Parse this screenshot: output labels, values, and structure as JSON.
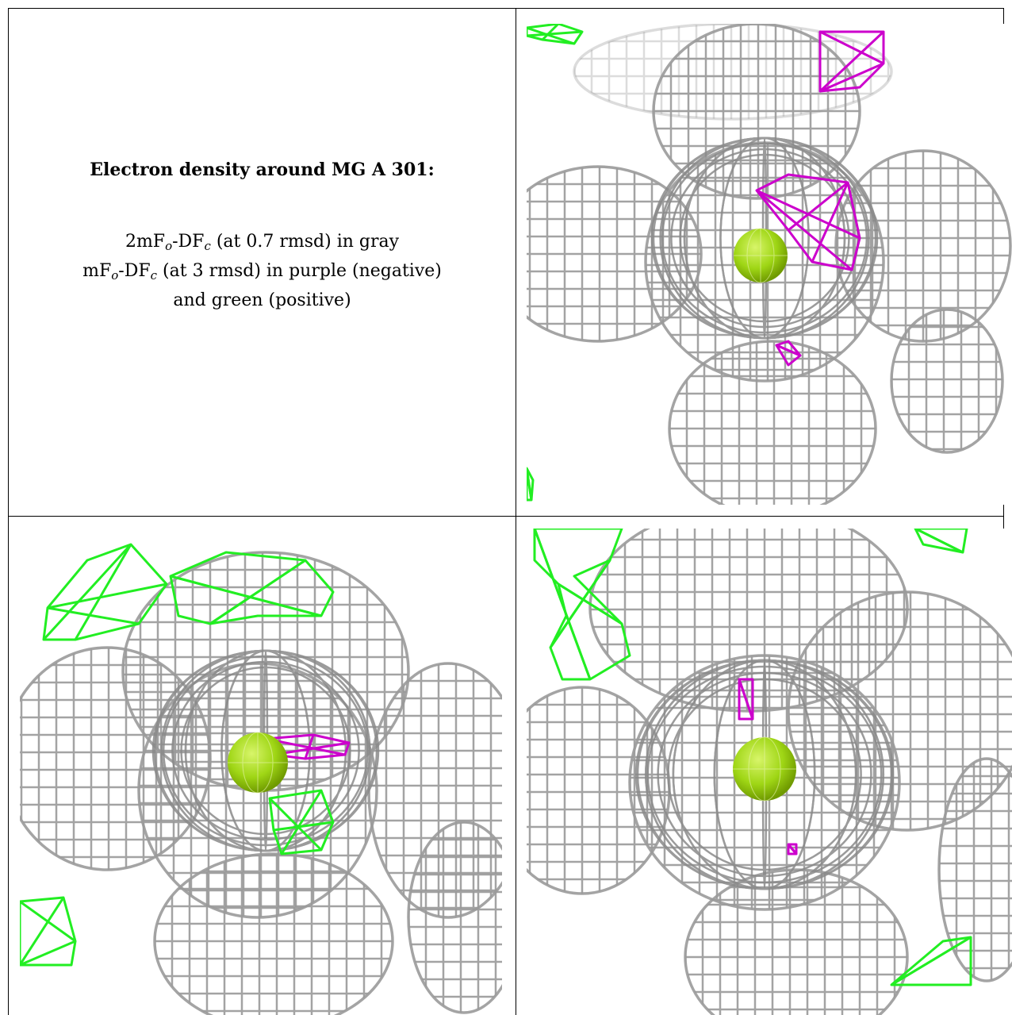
{
  "caption": {
    "title": "Electron density around MG A 301:",
    "line1": {
      "a": "2mF",
      "sub1": "o",
      "b": "-DF",
      "sub2": "c",
      "c": " (at 0.7 rmsd) in gray"
    },
    "line2": {
      "a": "mF",
      "sub1": "o",
      "b": "-DF",
      "sub2": "c",
      "c": " (at 3 rmsd) in purple (negative)"
    },
    "line3": "and green (positive)"
  },
  "colors": {
    "mesh_2fofc": "#9a9a9a",
    "mesh_negative": "#cc00cc",
    "mesh_positive": "#22ee22",
    "atom_mg": "#9fd615",
    "border": "#000000"
  },
  "panels": [
    "view-1",
    "view-2",
    "view-3"
  ]
}
